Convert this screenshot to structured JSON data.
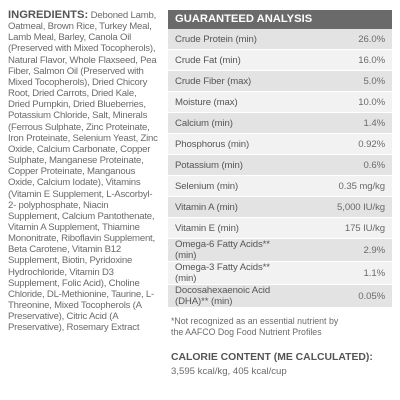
{
  "ingredients": {
    "heading": "INGREDIENTS:",
    "text": "Deboned Lamb, Oatmeal, Brown Rice, Turkey Meal, Lamb Meal, Barley, Canola Oil (Preserved with Mixed Tocopherols), Natural Flavor, Whole Flaxseed, Pea Fiber, Salmon Oil (Preserved with Mixed Tocopherols), Dried Chicory Root, Dried Carrots, Dried Kale, Dried Pumpkin, Dried Blueberries, Potassium Chloride, Salt, Minerals (Ferrous Sulphate, Zinc Proteinate, Iron Proteinate, Selenium Yeast, Zinc Oxide, Calcium Carbonate, Copper Sulphate, Manganese Proteinate, Copper Proteinate, Manganous Oxide, Calcium Iodate), Vitamins (Vitamin E Supplement, L-Ascorbyl-2- polyphosphate, Niacin Supplement, Calcium Pantothenate, Vitamin A Supplement, Thiamine Mononitrate, Riboflavin Supplement, Beta Carotene, Vitamin B12 Supplement, Biotin, Pyridoxine Hydrochloride, Vitamin D3 Supplement, Folic Acid), Choline Chloride, DL-Methionine, Taurine, L-Threonine, Mixed Tocopherols (A Preservative), Citric Acid (A Preservative), Rosemary Extract"
  },
  "analysis": {
    "title": "GUARANTEED ANALYSIS",
    "rows": [
      {
        "label": "Crude Protein (min)",
        "value": "26.0%"
      },
      {
        "label": "Crude Fat (min)",
        "value": "16.0%"
      },
      {
        "label": "Crude Fiber (max)",
        "value": "5.0%"
      },
      {
        "label": "Moisture (max)",
        "value": "10.0%"
      },
      {
        "label": "Calcium (min)",
        "value": "1.4%"
      },
      {
        "label": "Phosphorus (min)",
        "value": "0.92%"
      },
      {
        "label": "Potassium (min)",
        "value": "0.6%"
      },
      {
        "label": "Selenium (min)",
        "value": "0.35 mg/kg"
      },
      {
        "label": "Vitamin A (min)",
        "value": "5,000 IU/kg"
      },
      {
        "label": "Vitamin E (min)",
        "value": "175 IU/kg"
      },
      {
        "label": "Omega-6 Fatty Acids** (min)",
        "value": "2.9%"
      },
      {
        "label": "Omega-3 Fatty Acids** (min)",
        "value": "1.1%"
      },
      {
        "label": "Docosahexaenoic Acid (DHA)** (min)",
        "value": "0.05%"
      }
    ],
    "footnote_line1": "*Not recognized as an essential nutrient by",
    "footnote_line2": "the AAFCO Dog Food Nutrient Profiles"
  },
  "calorie": {
    "title": "CALORIE CONTENT (ME CALCULATED):",
    "values": "3,595 kcal/kg, 405 kcal/cup"
  }
}
